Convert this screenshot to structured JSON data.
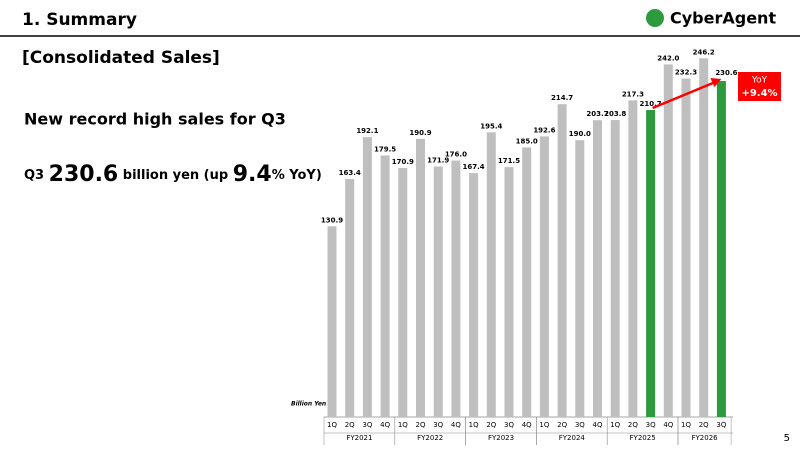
{
  "header": {
    "title": "1. Summary",
    "logo": "CyberAgent",
    "page": "5"
  },
  "section": "[Consolidated Sales]",
  "headline": "New record high sales for Q3",
  "summary": {
    "prefix": "Q3",
    "amount": "230.6",
    "middle": "billion yen (up",
    "growth": "9.4",
    "suffix": "% YoY)"
  },
  "chart_data": {
    "type": "bar",
    "unit_label": "Billion Yen",
    "callout": {
      "line1": "YoY",
      "line2": "+9.4%",
      "color": "#ff0000"
    },
    "groups": [
      {
        "name": "FY2021",
        "categories": [
          "1Q",
          "2Q",
          "3Q",
          "4Q"
        ],
        "values": [
          130.9,
          163.4,
          192.1,
          179.5
        ],
        "value_labels": [
          "130.9",
          "163.4",
          "192.1",
          "179.5"
        ],
        "colors": [
          "#bfbfbf",
          "#bfbfbf",
          "#bfbfbf",
          "#bfbfbf"
        ]
      },
      {
        "name": "FY2022",
        "categories": [
          "1Q",
          "2Q",
          "3Q",
          "4Q"
        ],
        "values": [
          170.9,
          190.9,
          171.9,
          176.0
        ],
        "value_labels": [
          "170.9",
          "190.9",
          "171.9",
          "176.0"
        ],
        "colors": [
          "#bfbfbf",
          "#bfbfbf",
          "#bfbfbf",
          "#bfbfbf"
        ]
      },
      {
        "name": "FY2023",
        "categories": [
          "1Q",
          "2Q",
          "3Q",
          "4Q"
        ],
        "values": [
          167.4,
          195.4,
          171.5,
          185.0
        ],
        "value_labels": [
          "167.4",
          "195.4",
          "171.5",
          "185.0"
        ],
        "colors": [
          "#bfbfbf",
          "#bfbfbf",
          "#bfbfbf",
          "#bfbfbf"
        ]
      },
      {
        "name": "FY2024",
        "categories": [
          "1Q",
          "2Q",
          "3Q",
          "4Q"
        ],
        "values": [
          192.6,
          214.7,
          190.0,
          203.7
        ],
        "value_labels": [
          "192.6",
          "214.7",
          "190.0",
          "203.7"
        ],
        "colors": [
          "#bfbfbf",
          "#bfbfbf",
          "#bfbfbf",
          "#bfbfbf"
        ]
      },
      {
        "name": "FY2025",
        "categories": [
          "1Q",
          "2Q",
          "3Q",
          "4Q"
        ],
        "values": [
          203.8,
          217.3,
          210.7,
          242.0
        ],
        "value_labels": [
          "203.8",
          "217.3",
          "210.7",
          "242.0"
        ],
        "colors": [
          "#bfbfbf",
          "#bfbfbf",
          "#2e9a3e",
          "#bfbfbf"
        ]
      },
      {
        "name": "FY2026",
        "categories": [
          "1Q",
          "2Q",
          "3Q"
        ],
        "values": [
          232.3,
          246.2,
          230.6
        ],
        "value_labels": [
          "232.3",
          "246.2",
          "230.6"
        ],
        "colors": [
          "#bfbfbf",
          "#bfbfbf",
          "#2e9a3e"
        ]
      }
    ]
  }
}
